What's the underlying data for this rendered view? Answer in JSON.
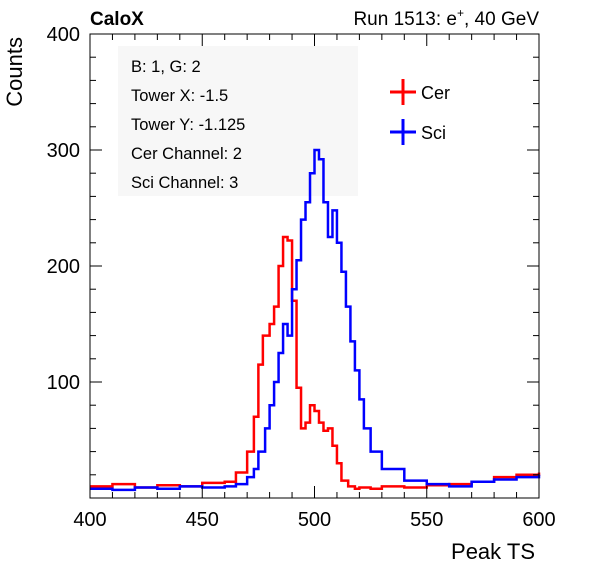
{
  "chart_data": {
    "type": "line",
    "title_left": "CaloX",
    "title_right": "Run 1513: e",
    "title_right_sup": "+",
    "title_right_tail": ", 40 GeV",
    "xlabel": "Peak TS",
    "ylabel": "Counts",
    "xlim": [
      400,
      600
    ],
    "ylim": [
      0,
      400
    ],
    "xticks": [
      400,
      450,
      500,
      550,
      600
    ],
    "yticks": [
      100,
      200,
      300,
      400
    ],
    "grid": false,
    "legend_position": "top-right",
    "info_lines": [
      "B: 1, G: 2",
      "Tower X: -1.5",
      "Tower Y: -1.125",
      "Cer Channel: 2",
      "Sci Channel: 3"
    ],
    "series": [
      {
        "name": "Cer",
        "color": "#ff0000",
        "x": [
          400,
          410,
          420,
          430,
          440,
          450,
          460,
          465,
          470,
          473,
          475,
          477,
          480,
          482,
          484,
          486,
          488,
          490,
          492,
          494,
          496,
          498,
          500,
          502,
          504,
          506,
          508,
          510,
          512,
          515,
          518,
          520,
          525,
          530,
          540,
          550,
          560,
          570,
          580,
          590,
          600
        ],
        "y": [
          10,
          12,
          9,
          11,
          10,
          13,
          14,
          22,
          40,
          70,
          115,
          140,
          150,
          165,
          200,
          225,
          222,
          170,
          95,
          60,
          65,
          80,
          75,
          65,
          58,
          60,
          45,
          30,
          15,
          10,
          8,
          9,
          8,
          10,
          9,
          11,
          12,
          14,
          18,
          20,
          22
        ]
      },
      {
        "name": "Sci",
        "color": "#0000ff",
        "x": [
          400,
          410,
          420,
          430,
          440,
          450,
          460,
          465,
          470,
          473,
          475,
          478,
          480,
          482,
          484,
          486,
          488,
          490,
          492,
          494,
          496,
          498,
          500,
          502,
          504,
          506,
          508,
          510,
          512,
          514,
          516,
          518,
          520,
          522,
          525,
          530,
          540,
          550,
          560,
          570,
          580,
          590,
          600
        ],
        "y": [
          8,
          7,
          9,
          8,
          10,
          9,
          10,
          12,
          18,
          25,
          40,
          60,
          80,
          100,
          125,
          150,
          140,
          180,
          205,
          240,
          255,
          280,
          300,
          292,
          255,
          225,
          248,
          220,
          195,
          165,
          135,
          110,
          85,
          60,
          40,
          25,
          15,
          12,
          10,
          14,
          16,
          18,
          20
        ]
      }
    ]
  }
}
